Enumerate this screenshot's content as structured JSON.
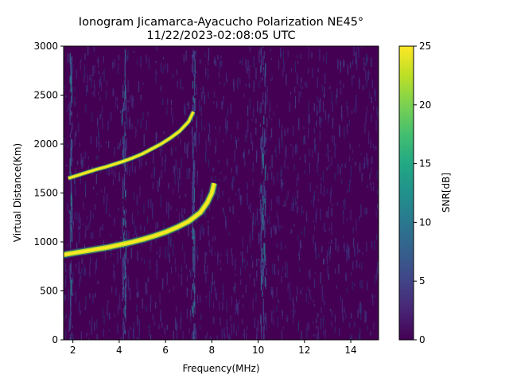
{
  "chart_data": {
    "type": "heatmap",
    "title": "Ionogram Jicamarca-Ayacucho Polarization NE45°",
    "subtitle": "11/22/2023-02:08:05 UTC",
    "xlabel": "Frequency(MHz)",
    "ylabel": "Virtual Distance(Km)",
    "xlim": [
      1.6,
      15.2
    ],
    "ylim": [
      0,
      3000
    ],
    "xticks": [
      2,
      4,
      6,
      8,
      10,
      12,
      14
    ],
    "yticks": [
      0,
      500,
      1000,
      1500,
      2000,
      2500,
      3000
    ],
    "colorbar": {
      "label": "SNR[dB]",
      "range": [
        0,
        25
      ],
      "ticks": [
        0,
        5,
        10,
        15,
        20,
        25
      ],
      "colormap": "viridis"
    },
    "traces": [
      {
        "freq_mhz": [
          1.6,
          2.0,
          2.5,
          3.0,
          3.5,
          4.0,
          4.5,
          5.0,
          5.5,
          6.0,
          6.5,
          7.0,
          7.5,
          7.8,
          8.0,
          8.1
        ],
        "distance_km": [
          870,
          885,
          905,
          925,
          945,
          970,
          995,
          1025,
          1060,
          1100,
          1150,
          1210,
          1300,
          1400,
          1500,
          1600
        ],
        "snr_db": 25
      },
      {
        "freq_mhz": [
          1.8,
          2.2,
          2.6,
          3.0,
          3.4,
          3.8,
          4.2,
          4.6,
          5.0,
          5.4,
          5.8,
          6.2,
          6.6,
          7.0,
          7.2
        ],
        "distance_km": [
          1650,
          1680,
          1710,
          1740,
          1765,
          1795,
          1825,
          1860,
          1900,
          1950,
          2000,
          2060,
          2130,
          2230,
          2330
        ],
        "snr_db": 25
      }
    ]
  },
  "colors": {
    "viridis_low": "#440154",
    "viridis_high": "#fde725"
  }
}
